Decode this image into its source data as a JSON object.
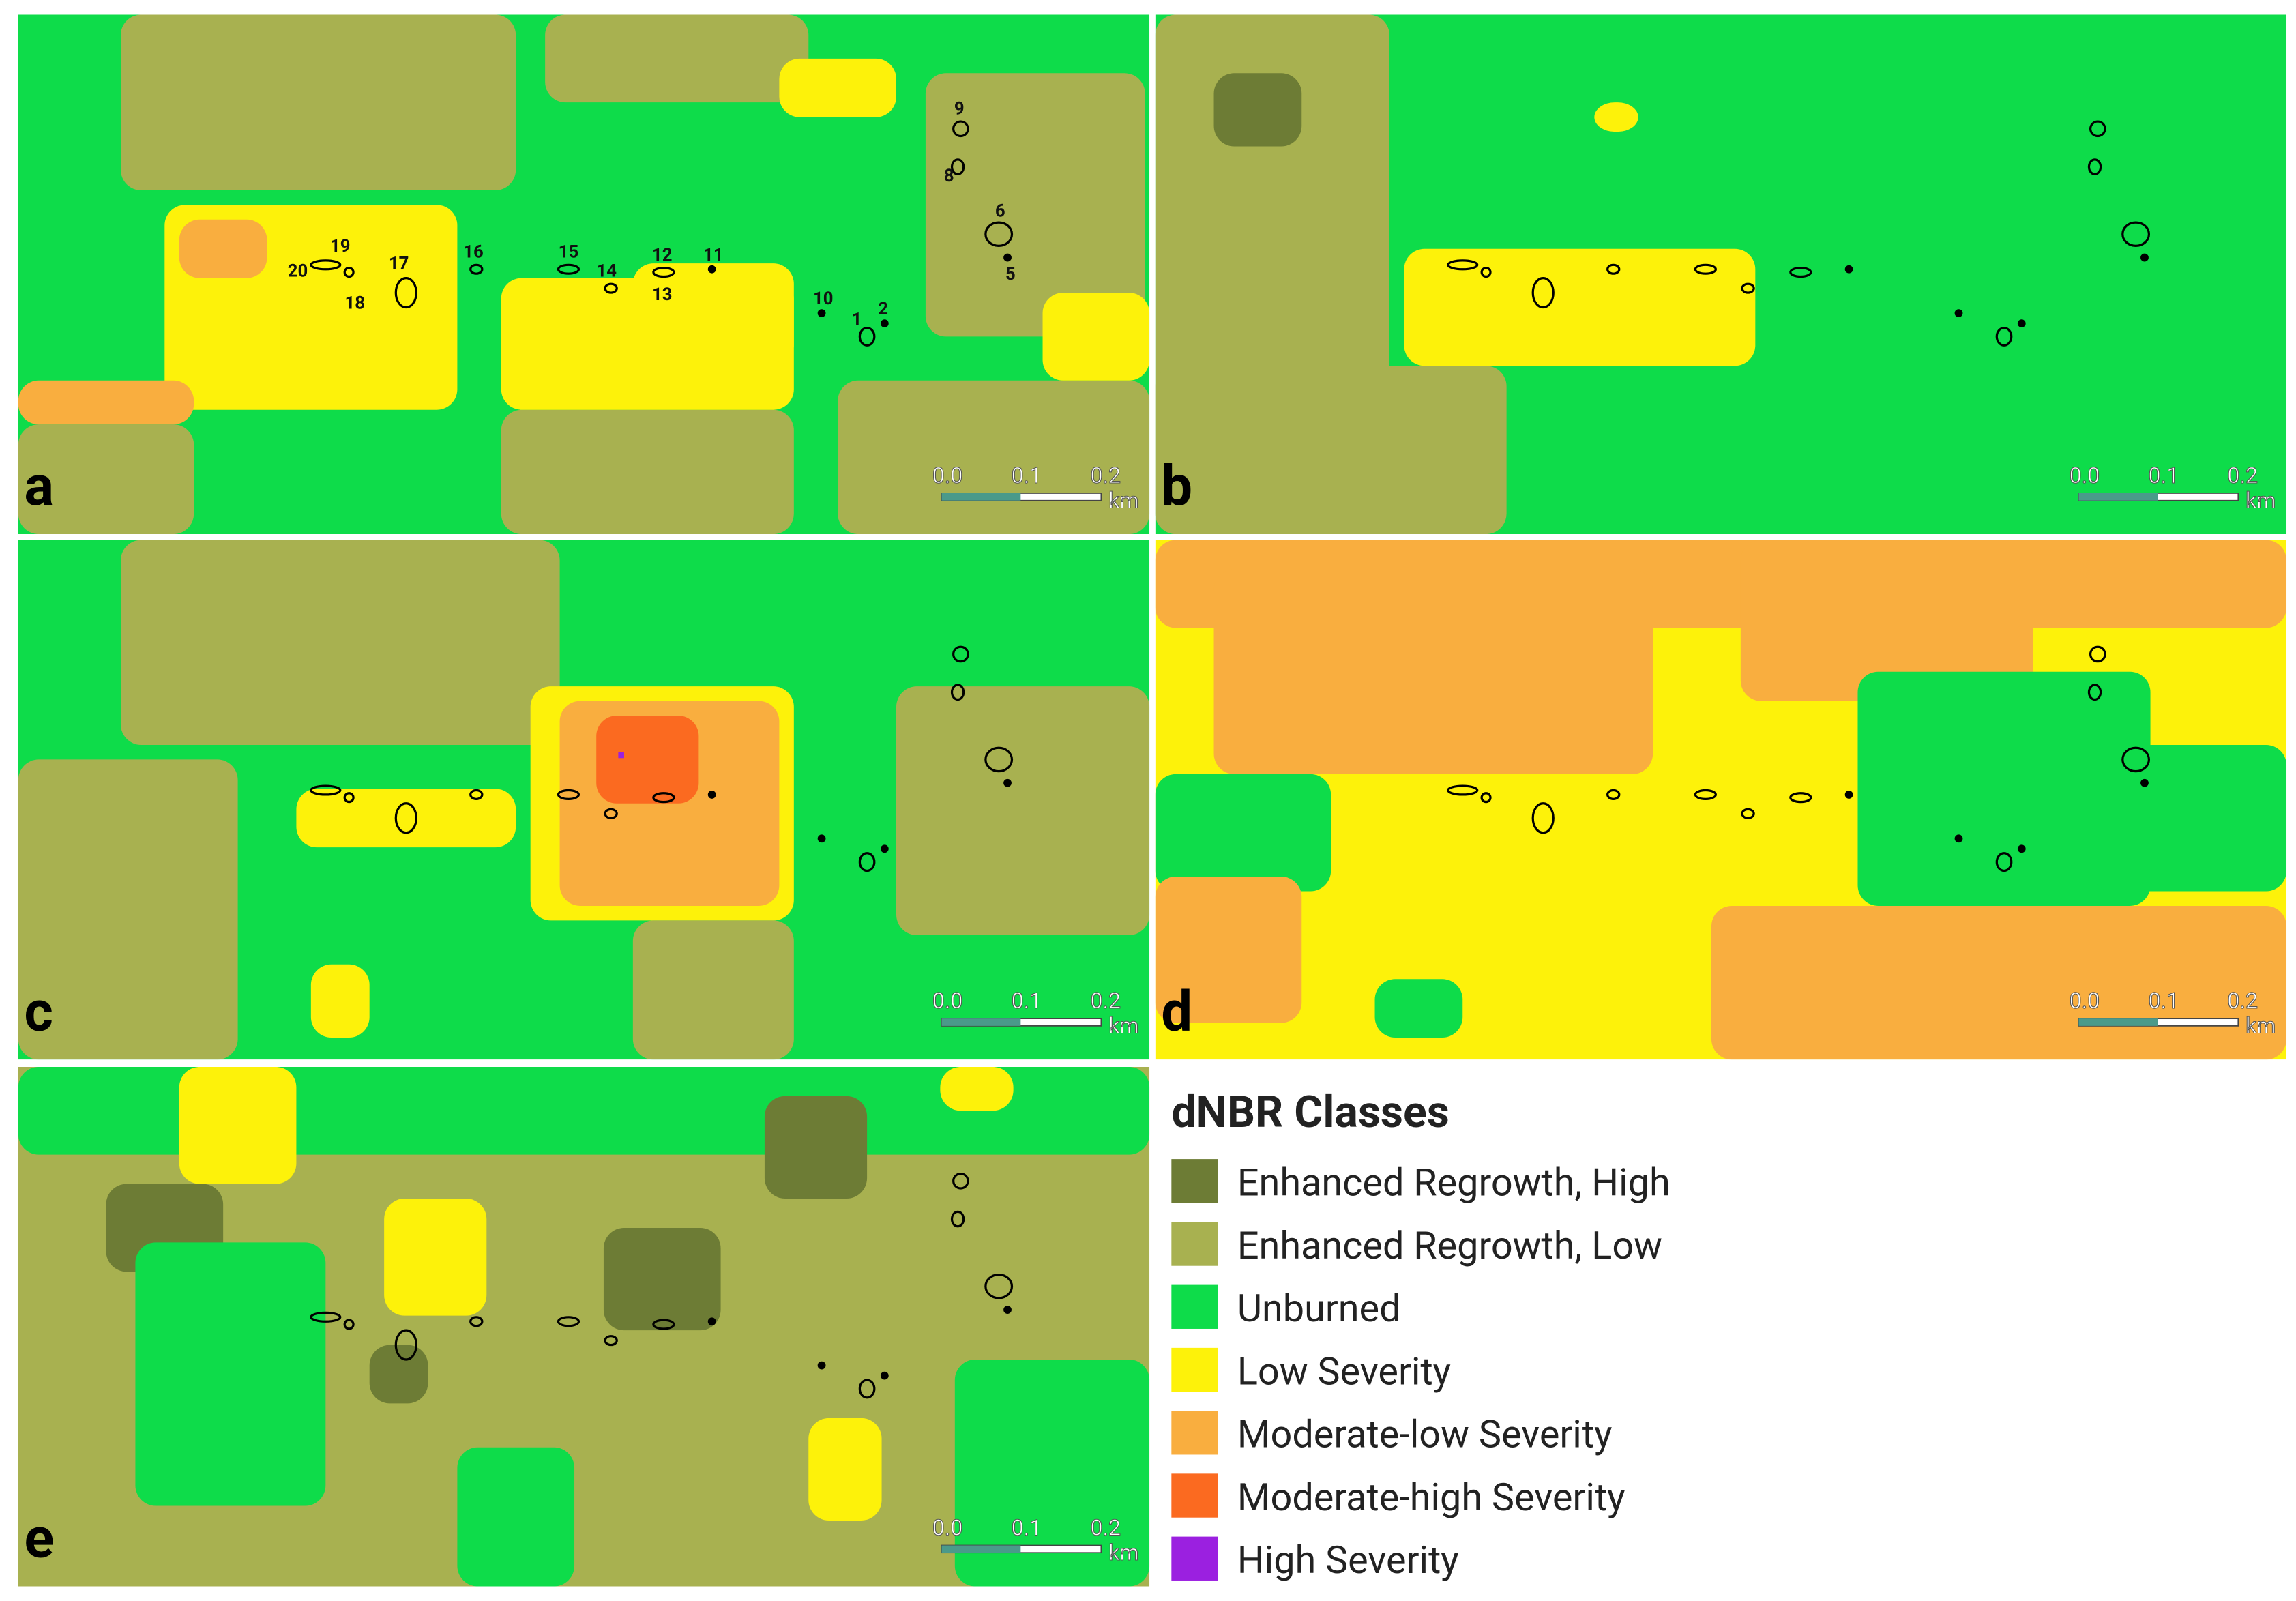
{
  "panels": [
    {
      "letter": "a",
      "scale": [
        "0.0",
        "0.1",
        "0.2"
      ],
      "unit": "km"
    },
    {
      "letter": "b",
      "scale": [
        "0.0",
        "0.1",
        "0.2"
      ],
      "unit": "km"
    },
    {
      "letter": "c",
      "scale": [
        "0.0",
        "0.1",
        "0.2"
      ],
      "unit": "km"
    },
    {
      "letter": "d",
      "scale": [
        "0.0",
        "0.1",
        "0.2"
      ],
      "unit": "km"
    },
    {
      "letter": "e",
      "scale": [
        "0.0",
        "0.1",
        "0.2"
      ],
      "unit": "km"
    }
  ],
  "sites": [
    "1",
    "2",
    "5",
    "6",
    "8",
    "9",
    "10",
    "11",
    "12",
    "13",
    "14",
    "15",
    "16",
    "17",
    "18",
    "19",
    "20"
  ],
  "legend": {
    "title": "dNBR Classes",
    "entries": [
      {
        "name": "Enhanced Regrowth, High",
        "color": "#6d7c35"
      },
      {
        "name": "Enhanced Regrowth, Low",
        "color": "#a8b150"
      },
      {
        "name": "Unburned",
        "color": "#0edc4a"
      },
      {
        "name": "Low Severity",
        "color": "#fdf20a"
      },
      {
        "name": "Moderate-low Severity",
        "color": "#f9ae3f"
      },
      {
        "name": "Moderate-high Severity",
        "color": "#fb6a20"
      },
      {
        "name": "High Severity",
        "color": "#9b20e0"
      }
    ]
  }
}
